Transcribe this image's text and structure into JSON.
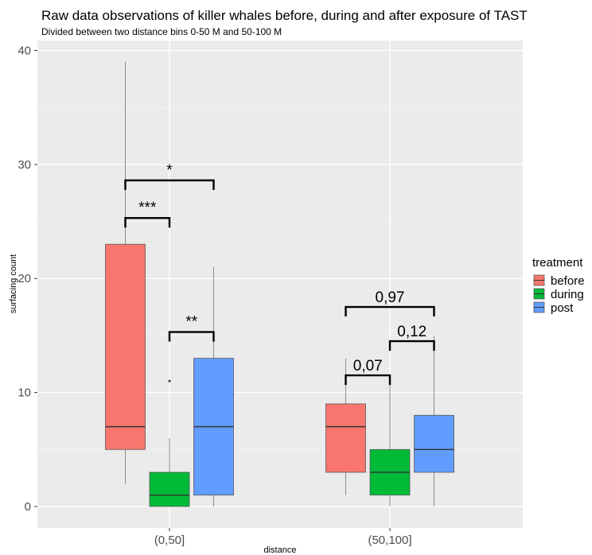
{
  "chart_data": {
    "type": "boxplot",
    "title": "Raw data observations of killer whales before, during and after exposure of TAST",
    "subtitle": "Divided between two distance bins 0-50 M and 50-100 M",
    "xlabel": "distance",
    "ylabel": "surfacing count",
    "categories": [
      "(0,50]",
      "(50,100]"
    ],
    "ylim": [
      -2,
      41.5
    ],
    "yticks": [
      0,
      10,
      20,
      30,
      40
    ],
    "grid": true,
    "legend": {
      "title": "treatment",
      "position": "right"
    },
    "series": [
      {
        "name": "before",
        "color": "#F8766D",
        "boxes": [
          {
            "category": "(0,50]",
            "min": 2,
            "q1": 5,
            "median": 7,
            "q3": 23,
            "max": 39,
            "outliers": []
          },
          {
            "category": "(50,100]",
            "min": 1,
            "q1": 3,
            "median": 7,
            "q3": 9,
            "max": 13,
            "outliers": []
          }
        ]
      },
      {
        "name": "during",
        "color": "#00BA38",
        "boxes": [
          {
            "category": "(0,50]",
            "min": 0,
            "q1": 0,
            "median": 1,
            "q3": 3,
            "max": 6,
            "outliers": [
              11
            ]
          },
          {
            "category": "(50,100]",
            "min": 0,
            "q1": 1,
            "median": 3,
            "q3": 5,
            "max": 11,
            "outliers": []
          }
        ]
      },
      {
        "name": "post",
        "color": "#619CFF",
        "boxes": [
          {
            "category": "(0,50]",
            "min": 0,
            "q1": 1,
            "median": 7,
            "q3": 13,
            "max": 21,
            "outliers": []
          },
          {
            "category": "(50,100]",
            "min": 0,
            "q1": 3,
            "median": 5,
            "q3": 8,
            "max": 15,
            "outliers": []
          }
        ]
      }
    ],
    "annotations": [
      {
        "category": "(0,50]",
        "from": "before",
        "to": "post",
        "label": "*",
        "y": 28.6
      },
      {
        "category": "(0,50]",
        "from": "before",
        "to": "during",
        "label": "***",
        "y": 25.3
      },
      {
        "category": "(0,50]",
        "from": "during",
        "to": "post",
        "label": "**",
        "y": 15.3
      },
      {
        "category": "(50,100]",
        "from": "before",
        "to": "post",
        "label": "0,97",
        "y": 17.5
      },
      {
        "category": "(50,100]",
        "from": "during",
        "to": "post",
        "label": "0,12",
        "y": 14.5
      },
      {
        "category": "(50,100]",
        "from": "before",
        "to": "during",
        "label": "0,07",
        "y": 11.5
      }
    ]
  }
}
